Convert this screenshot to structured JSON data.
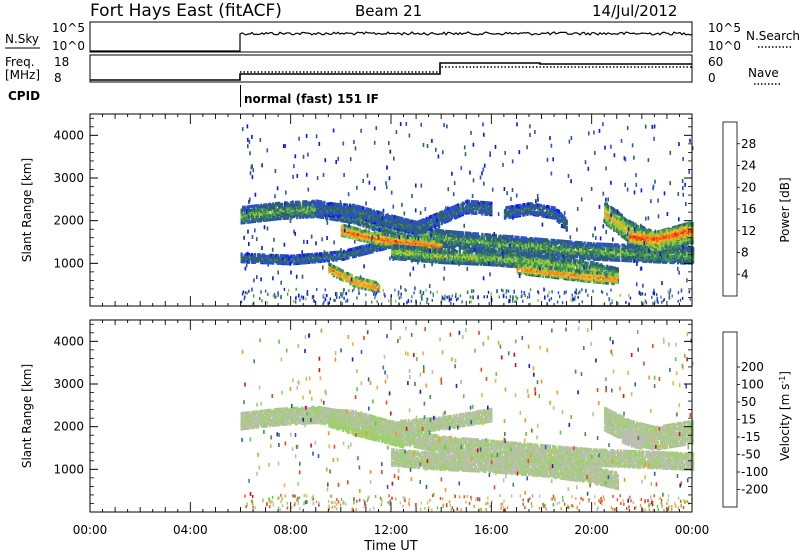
{
  "header": {
    "station": "Fort Hays East (fitACF)",
    "beam": "Beam 21",
    "date": "14/Jul/2012"
  },
  "summary": {
    "nsky_label": "N.Sky",
    "nsky_ticks": [
      "10^5",
      "10^0"
    ],
    "nsearch_label": "N.Search",
    "nsearch_ticks": [
      "10^5",
      "10^0"
    ],
    "freq_label_1": "Freq.",
    "freq_label_2": "[MHz]",
    "freq_ticks": [
      "18",
      "8"
    ],
    "nave_label": "Nave",
    "nave_ticks": [
      "60",
      "0"
    ],
    "cpid_label": "CPID",
    "cpid_mode": "normal (fast) 151 IF"
  },
  "colors": {
    "power": [
      "#0a16f5",
      "#2c51d2",
      "#2d5f6e",
      "#3f8f5e",
      "#8fcc34",
      "#f6b52a",
      "#f78a1a",
      "#f24b0c",
      "#e50f0c"
    ],
    "velocity": [
      "#e20b0b",
      "#ef4814",
      "#f6951f",
      "#ebb447",
      "#bdbdb6",
      "#9fd06f",
      "#63c541",
      "#3c8c55",
      "#2d5fae",
      "#1b1fd0"
    ]
  },
  "chart_data": [
    {
      "type": "heatmap",
      "name": "power",
      "ylabel": "Slant Range [km]",
      "xlabel": "",
      "yticks": [
        "1000",
        "2000",
        "3000",
        "4000"
      ],
      "ylim": [
        0,
        4500
      ],
      "xlim": [
        0,
        24
      ],
      "xticks": [
        "00:00",
        "04:00",
        "08:00",
        "12:00",
        "16:00",
        "20:00",
        "00:00"
      ],
      "colorbar_label": "Power [dB]",
      "colorbar_ticks": [
        "4",
        "8",
        "12",
        "16",
        "20",
        "24",
        "28"
      ],
      "colorbar_range": [
        0,
        32
      ],
      "data_start_hour": 6,
      "bands": [
        {
          "t": [
            6,
            7.5,
            9,
            10.5,
            12,
            14,
            16,
            18,
            20,
            22,
            24
          ],
          "r": [
            2150,
            2250,
            2300,
            2150,
            1850,
            1600,
            1500,
            1400,
            1300,
            1250,
            1200
          ],
          "w": 180,
          "p": 14
        },
        {
          "t": [
            6,
            8,
            10,
            11,
            12
          ],
          "r": [
            1150,
            1100,
            1200,
            1350,
            1500
          ],
          "w": 90,
          "p": 10
        },
        {
          "t": [
            9,
            10.5,
            12,
            13,
            14,
            15,
            16
          ],
          "r": [
            2300,
            2250,
            2000,
            1850,
            2100,
            2350,
            2300
          ],
          "w": 140,
          "p": 10
        },
        {
          "t": [
            10,
            11,
            12,
            13,
            14
          ],
          "r": [
            1800,
            1650,
            1550,
            1500,
            1400
          ],
          "w": 120,
          "p": 26
        },
        {
          "t": [
            12,
            14,
            16,
            18,
            20,
            21
          ],
          "r": [
            1300,
            1200,
            1150,
            1050,
            900,
            750
          ],
          "w": 160,
          "p": 16
        },
        {
          "t": [
            17,
            18.5,
            20,
            21
          ],
          "r": [
            900,
            800,
            700,
            650
          ],
          "w": 110,
          "p": 24
        },
        {
          "t": [
            9.5,
            10.5,
            11.5
          ],
          "r": [
            900,
            600,
            450
          ],
          "w": 110,
          "p": 24
        },
        {
          "t": [
            16.5,
            17.5,
            18.5,
            19
          ],
          "r": [
            2200,
            2300,
            2200,
            1900
          ],
          "w": 120,
          "p": 10
        },
        {
          "t": [
            20.5,
            21.5,
            22.5,
            24
          ],
          "r": [
            2200,
            1750,
            1500,
            1750
          ],
          "w": 240,
          "p": 20
        },
        {
          "t": [
            21.5,
            22.5,
            24
          ],
          "r": [
            1650,
            1600,
            1800
          ],
          "w": 140,
          "p": 28
        }
      ]
    },
    {
      "type": "heatmap",
      "name": "velocity",
      "ylabel": "Slant Range [km]",
      "xlabel": "Time UT",
      "yticks": [
        "1000",
        "2000",
        "3000",
        "4000"
      ],
      "ylim": [
        0,
        4500
      ],
      "xlim": [
        0,
        24
      ],
      "xticks": [
        "00:00",
        "04:00",
        "08:00",
        "12:00",
        "16:00",
        "20:00",
        "00:00"
      ],
      "colorbar_label": "Velocity [m s^-1]",
      "colorbar_ticks": [
        "-200",
        "-100",
        "-50",
        "-15",
        "15",
        "50",
        "100",
        "200"
      ],
      "colorbar_range": [
        -250,
        250
      ],
      "data_start_hour": 6,
      "bands": [
        {
          "t": [
            6,
            7.5,
            9,
            10.5,
            12,
            14,
            16,
            18,
            20,
            22,
            24
          ],
          "r": [
            2150,
            2250,
            2300,
            2150,
            1850,
            1600,
            1500,
            1400,
            1300,
            1250,
            1200
          ],
          "w": 180,
          "v": 0
        },
        {
          "t": [
            9,
            10.5,
            12,
            14,
            16
          ],
          "r": [
            2300,
            2250,
            2000,
            2100,
            2300
          ],
          "w": 140,
          "v": 0
        },
        {
          "t": [
            12,
            14,
            16,
            18,
            20,
            21
          ],
          "r": [
            1300,
            1200,
            1150,
            1050,
            900,
            750
          ],
          "w": 180,
          "v": 0
        },
        {
          "t": [
            9.5,
            10.5,
            11.5,
            12.5
          ],
          "r": [
            2100,
            1900,
            1750,
            1600
          ],
          "w": 60,
          "v": 30
        },
        {
          "t": [
            20.5,
            21.5,
            22.5,
            24
          ],
          "r": [
            2200,
            1900,
            1750,
            1900
          ],
          "w": 260,
          "v": 0
        },
        {
          "t": [
            21.2,
            21.6,
            22
          ],
          "r": [
            1800,
            1700,
            1650
          ],
          "w": 140,
          "v": -40
        }
      ]
    }
  ]
}
